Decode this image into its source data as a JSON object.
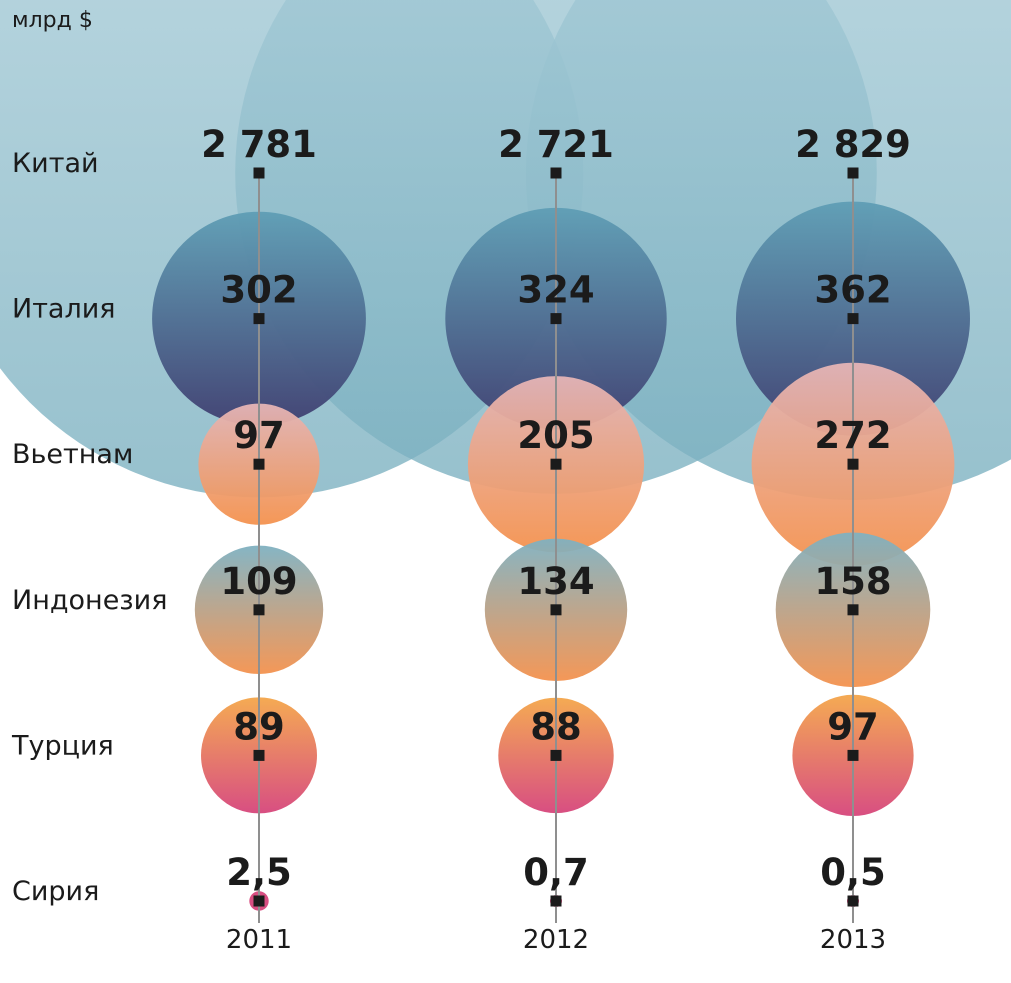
{
  "chart_data": {
    "type": "bubble",
    "unit": "млрд $",
    "categories": [
      "Китай",
      "Италия",
      "Вьетнам",
      "Индонезия",
      "Турция",
      "Сирия"
    ],
    "x": [
      "2011",
      "2012",
      "2013"
    ],
    "series": [
      {
        "name": "Китай",
        "values": [
          2781,
          2721,
          2829
        ],
        "labels": [
          "2 781",
          "2 721",
          "2 829"
        ]
      },
      {
        "name": "Италия",
        "values": [
          302,
          324,
          362
        ],
        "labels": [
          "302",
          "324",
          "362"
        ]
      },
      {
        "name": "Вьетнам",
        "values": [
          97,
          205,
          272
        ],
        "labels": [
          "97",
          "205",
          "272"
        ]
      },
      {
        "name": "Индонезия",
        "values": [
          109,
          134,
          158
        ],
        "labels": [
          "109",
          "134",
          "158"
        ]
      },
      {
        "name": "Турция",
        "values": [
          89,
          88,
          97
        ],
        "labels": [
          "89",
          "88",
          "97"
        ]
      },
      {
        "name": "Сирия",
        "values": [
          2.5,
          0.7,
          0.5
        ],
        "labels": [
          "2,5",
          "0,7",
          "0,5"
        ]
      }
    ],
    "colors": {
      "Китай": [
        "#a9cdd9",
        "#79afbf"
      ],
      "Италия": [
        "#5f9eb5",
        "#3f3e70"
      ],
      "Вьетнам": [
        "#e5b5b7",
        "#f4924e"
      ],
      "Индонезия": [
        "#7fb1c1",
        "#f4924e"
      ],
      "Турция": [
        "#f4a64a",
        "#d6457b"
      ],
      "Сирия": [
        "#d6457b",
        "#d6457b"
      ]
    }
  }
}
